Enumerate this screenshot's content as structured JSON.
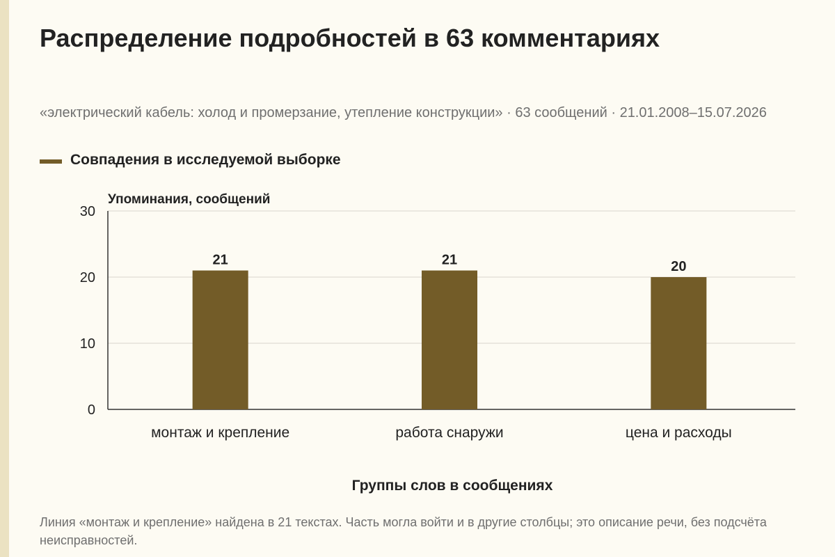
{
  "title": "Распределение подробностей в 63 комментариях",
  "subtitle": "«электрический кабель: холод и промерзание, утепление конструкции» · 63 сообщений · 21.01.2008–15.07.2026",
  "footnote": "Линия «монтаж и крепление» найдена в 21 текстах. Часть могла войти и в другие столбцы; это описание речи, без подсчёта неисправностей.",
  "colors": {
    "bar": "#735c28",
    "grid": "#d9d6cc",
    "axis": "#333333",
    "background": "#fdfbf3",
    "muted_text": "#6f6f6f"
  },
  "chart_data": {
    "type": "bar",
    "title": "Распределение подробностей в 63 комментариях",
    "ylabel": "Упоминания, сообщений",
    "xlabel": "Группы слов в сообщениях",
    "categories": [
      "монтаж и крепление",
      "работа снаружи",
      "цена и расходы"
    ],
    "series": [
      {
        "name": "Совпадения в исследуемой выборке",
        "values": [
          21,
          21,
          20
        ]
      }
    ],
    "ylim": [
      0,
      30
    ],
    "yticks": [
      0,
      10,
      20,
      30
    ],
    "grid": true,
    "legend_position": "top-left",
    "data_labels": true
  }
}
